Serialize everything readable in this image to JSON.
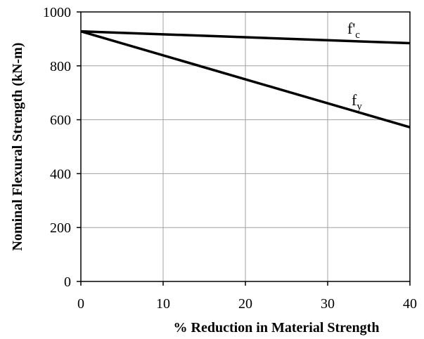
{
  "chart_data": {
    "type": "line",
    "title": "",
    "xlabel": "% Reduction in Material Strength",
    "ylabel": "Nominal Flexural Strength (kN-m)",
    "xlim": [
      0,
      40
    ],
    "ylim": [
      0,
      1000
    ],
    "xticks": [
      0,
      10,
      20,
      30,
      40
    ],
    "yticks": [
      0,
      200,
      400,
      600,
      800,
      1000
    ],
    "grid": true,
    "legend": "none",
    "series": [
      {
        "label_main": "f'",
        "label_sub": "c",
        "color": "#000000",
        "x": [
          0,
          40
        ],
        "y": [
          928,
          884
        ]
      },
      {
        "label_main": "f",
        "label_sub": "y",
        "color": "#000000",
        "x": [
          0,
          40
        ],
        "y": [
          928,
          572
        ]
      }
    ]
  }
}
